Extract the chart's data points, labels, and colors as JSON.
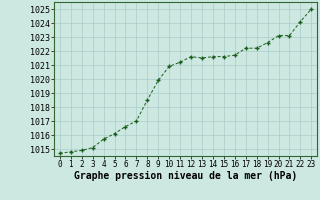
{
  "x": [
    0,
    1,
    2,
    3,
    4,
    5,
    6,
    7,
    8,
    9,
    10,
    11,
    12,
    13,
    14,
    15,
    16,
    17,
    18,
    19,
    20,
    21,
    22,
    23
  ],
  "y": [
    1014.7,
    1014.8,
    1014.9,
    1015.1,
    1015.7,
    1016.1,
    1016.6,
    1017.0,
    1018.5,
    1019.9,
    1020.9,
    1021.2,
    1021.6,
    1021.5,
    1021.6,
    1021.6,
    1021.7,
    1022.2,
    1022.2,
    1022.6,
    1023.1,
    1023.1,
    1024.1,
    1025.0
  ],
  "ylim": [
    1014.5,
    1025.5
  ],
  "xlim": [
    -0.5,
    23.5
  ],
  "yticks": [
    1015,
    1016,
    1017,
    1018,
    1019,
    1020,
    1021,
    1022,
    1023,
    1024,
    1025
  ],
  "xticks": [
    0,
    1,
    2,
    3,
    4,
    5,
    6,
    7,
    8,
    9,
    10,
    11,
    12,
    13,
    14,
    15,
    16,
    17,
    18,
    19,
    20,
    21,
    22,
    23
  ],
  "line_color": "#1a5c1a",
  "marker_color": "#1a5c1a",
  "bg_color": "#cce8e0",
  "grid_color": "#aacccc",
  "xlabel": "Graphe pression niveau de la mer (hPa)",
  "xlabel_fontsize": 7,
  "ylabel_fontsize": 6,
  "tick_fontsize": 5.5,
  "title": ""
}
